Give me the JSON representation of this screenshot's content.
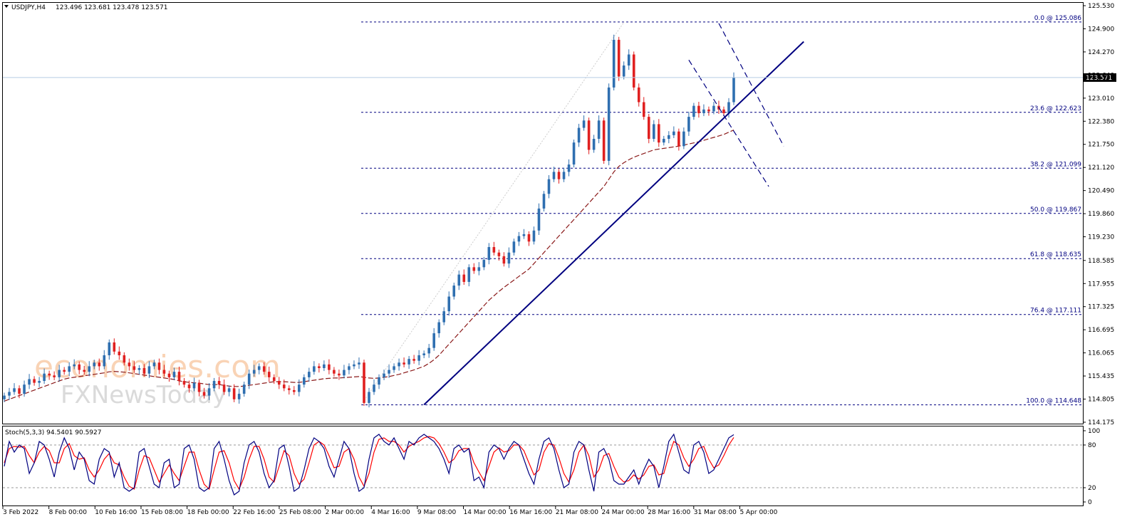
{
  "header": {
    "symbol": "USDJPY,H4",
    "ohlc": "123.496 123.681 123.478 123.571"
  },
  "watermark": {
    "brand": "economies.com",
    "sub": "FXNewsToday"
  },
  "current_price": "123.571",
  "stoch": {
    "label": "Stoch(5,3,3) 94.5401 90.5927",
    "levels": [
      "100",
      "80",
      "20",
      "0"
    ]
  },
  "colors": {
    "bull": "#2f6fb0",
    "bear": "#e02020",
    "fib": "#000080",
    "trend": "#000080",
    "ma": "#8b1a1a",
    "stoch_main": "#000080",
    "stoch_signal": "#ff0000"
  },
  "chart_data": {
    "type": "candlestick",
    "price_axis": {
      "min": 114.175,
      "max": 125.53,
      "ticks": [
        "125.530",
        "124.900",
        "124.270",
        "123.640",
        "123.010",
        "122.380",
        "121.750",
        "121.120",
        "120.490",
        "119.860",
        "119.230",
        "118.585",
        "117.955",
        "117.325",
        "116.695",
        "116.065",
        "115.435",
        "114.805",
        "114.175"
      ]
    },
    "time_axis": [
      "3 Feb 2022",
      "8 Feb 00:00",
      "10 Feb 16:00",
      "15 Feb 08:00",
      "18 Feb 00:00",
      "22 Feb 16:00",
      "25 Feb 08:00",
      "2 Mar 00:00",
      "4 Mar 16:00",
      "9 Mar 08:00",
      "14 Mar 00:00",
      "16 Mar 16:00",
      "21 Mar 08:00",
      "24 Mar 00:00",
      "28 Mar 16:00",
      "31 Mar 08:00",
      "5 Apr 00:00"
    ],
    "fibonacci": [
      {
        "label": "0.0 @ 125.086",
        "value": 125.086
      },
      {
        "label": "23.6 @ 122.623",
        "value": 122.623
      },
      {
        "label": "38.2 @ 121.099",
        "value": 121.099
      },
      {
        "label": "50.0 @ 119.867",
        "value": 119.867
      },
      {
        "label": "61.8 @ 118.635",
        "value": 118.635
      },
      {
        "label": "76.4 @ 117.111",
        "value": 117.111
      },
      {
        "label": "100.0 @ 114.648",
        "value": 114.648
      }
    ],
    "trendlines": [
      {
        "style": "solid",
        "from": [
          84,
          114.65
        ],
        "to": [
          160,
          124.55
        ]
      },
      {
        "style": "dashed",
        "from": [
          137,
          124.05
        ],
        "to": [
          153,
          120.6
        ]
      },
      {
        "style": "dashed",
        "from": [
          143,
          125.05
        ],
        "to": [
          156,
          121.7
        ]
      }
    ],
    "close": [
      114.9,
      115.0,
      115.1,
      114.95,
      115.2,
      115.35,
      115.25,
      115.3,
      115.5,
      115.45,
      115.4,
      115.6,
      115.55,
      115.7,
      115.75,
      115.6,
      115.55,
      115.7,
      115.8,
      115.7,
      116.0,
      116.35,
      116.1,
      116.0,
      115.8,
      115.7,
      115.6,
      115.65,
      115.5,
      115.7,
      115.8,
      115.6,
      115.5,
      115.4,
      115.55,
      115.3,
      115.2,
      115.1,
      115.25,
      115.0,
      114.9,
      115.1,
      115.3,
      115.2,
      115.0,
      115.1,
      114.8,
      114.95,
      115.2,
      115.5,
      115.6,
      115.7,
      115.55,
      115.4,
      115.3,
      115.2,
      115.1,
      115.05,
      115.0,
      115.2,
      115.4,
      115.55,
      115.7,
      115.65,
      115.75,
      115.6,
      115.5,
      115.45,
      115.6,
      115.7,
      115.75,
      115.8,
      114.7,
      115.0,
      115.2,
      115.4,
      115.5,
      115.6,
      115.7,
      115.8,
      115.75,
      115.9,
      115.85,
      116.0,
      116.05,
      116.2,
      116.6,
      116.9,
      117.2,
      117.6,
      117.9,
      118.2,
      118.0,
      118.4,
      118.3,
      118.4,
      118.6,
      118.95,
      118.8,
      118.7,
      118.5,
      118.8,
      119.1,
      119.25,
      119.3,
      119.1,
      119.4,
      120.0,
      120.4,
      120.8,
      121.0,
      120.8,
      121.0,
      121.2,
      121.8,
      122.2,
      122.4,
      121.6,
      121.9,
      122.4,
      121.3,
      123.3,
      124.6,
      123.6,
      123.9,
      124.2,
      123.3,
      122.9,
      122.5,
      121.9,
      122.3,
      121.8,
      121.9,
      122.0,
      122.1,
      121.7,
      122.1,
      122.5,
      122.8,
      122.6,
      122.7,
      122.65,
      122.8,
      122.7,
      122.6,
      122.9,
      123.571
    ],
    "ma": [
      114.75,
      114.8,
      114.85,
      114.9,
      114.95,
      115.0,
      115.05,
      115.1,
      115.15,
      115.2,
      115.25,
      115.3,
      115.35,
      115.38,
      115.4,
      115.42,
      115.44,
      115.46,
      115.48,
      115.5,
      115.52,
      115.55,
      115.56,
      115.55,
      115.54,
      115.52,
      115.5,
      115.48,
      115.46,
      115.44,
      115.42,
      115.4,
      115.38,
      115.36,
      115.34,
      115.3,
      115.28,
      115.26,
      115.25,
      115.24,
      115.22,
      115.2,
      115.2,
      115.2,
      115.18,
      115.16,
      115.15,
      115.15,
      115.16,
      115.18,
      115.2,
      115.22,
      115.24,
      115.26,
      115.28,
      115.28,
      115.28,
      115.27,
      115.26,
      115.26,
      115.28,
      115.3,
      115.32,
      115.34,
      115.36,
      115.37,
      115.38,
      115.38,
      115.39,
      115.4,
      115.41,
      115.42,
      115.4,
      115.38,
      115.37,
      115.38,
      115.4,
      115.42,
      115.45,
      115.48,
      115.52,
      115.56,
      115.6,
      115.65,
      115.7,
      115.78,
      115.88,
      116.0,
      116.15,
      116.3,
      116.45,
      116.6,
      116.75,
      116.9,
      117.05,
      117.2,
      117.35,
      117.5,
      117.62,
      117.74,
      117.85,
      117.95,
      118.05,
      118.15,
      118.25,
      118.35,
      118.5,
      118.65,
      118.8,
      118.95,
      119.1,
      119.25,
      119.4,
      119.55,
      119.7,
      119.85,
      120.0,
      120.15,
      120.3,
      120.45,
      120.6,
      120.8,
      121.0,
      121.15,
      121.25,
      121.33,
      121.4,
      121.45,
      121.5,
      121.55,
      121.6,
      121.62,
      121.64,
      121.66,
      121.68,
      121.7,
      121.73,
      121.76,
      121.79,
      121.82,
      121.86,
      121.9,
      121.94,
      121.98,
      122.02,
      122.08,
      122.14
    ],
    "stoch_k": [
      50,
      85,
      70,
      80,
      75,
      40,
      55,
      85,
      80,
      60,
      35,
      70,
      90,
      75,
      45,
      70,
      60,
      30,
      25,
      60,
      75,
      70,
      35,
      55,
      20,
      15,
      20,
      70,
      75,
      50,
      25,
      20,
      55,
      60,
      20,
      25,
      75,
      80,
      60,
      20,
      15,
      20,
      75,
      85,
      60,
      30,
      10,
      15,
      55,
      80,
      85,
      70,
      40,
      20,
      30,
      75,
      80,
      50,
      15,
      20,
      45,
      75,
      90,
      85,
      75,
      50,
      35,
      60,
      85,
      75,
      40,
      15,
      20,
      60,
      90,
      95,
      85,
      80,
      90,
      75,
      60,
      85,
      80,
      90,
      95,
      90,
      85,
      75,
      60,
      40,
      75,
      80,
      70,
      75,
      30,
      35,
      20,
      70,
      80,
      75,
      60,
      75,
      85,
      80,
      60,
      40,
      25,
      60,
      85,
      90,
      75,
      45,
      20,
      25,
      70,
      85,
      80,
      45,
      15,
      70,
      75,
      60,
      30,
      25,
      25,
      35,
      45,
      25,
      45,
      60,
      50,
      20,
      50,
      85,
      95,
      70,
      45,
      40,
      80,
      85,
      70,
      40,
      45,
      60,
      75,
      90,
      94.5401
    ],
    "stoch_d": [
      55,
      75,
      78,
      77,
      78,
      65,
      55,
      70,
      78,
      72,
      55,
      55,
      75,
      82,
      65,
      60,
      62,
      45,
      35,
      45,
      60,
      68,
      55,
      52,
      35,
      22,
      18,
      45,
      65,
      62,
      45,
      28,
      40,
      52,
      40,
      30,
      50,
      70,
      70,
      45,
      25,
      18,
      45,
      70,
      72,
      55,
      30,
      18,
      35,
      60,
      78,
      78,
      60,
      35,
      28,
      50,
      72,
      65,
      40,
      25,
      32,
      55,
      80,
      85,
      80,
      65,
      48,
      50,
      70,
      75,
      60,
      35,
      22,
      40,
      70,
      88,
      90,
      85,
      85,
      80,
      70,
      78,
      82,
      85,
      90,
      92,
      90,
      82,
      70,
      55,
      60,
      72,
      75,
      75,
      55,
      42,
      30,
      50,
      70,
      76,
      70,
      72,
      80,
      80,
      72,
      55,
      38,
      45,
      70,
      82,
      80,
      62,
      40,
      28,
      45,
      70,
      80,
      65,
      35,
      45,
      65,
      68,
      50,
      35,
      28,
      30,
      38,
      32,
      38,
      50,
      52,
      38,
      40,
      65,
      85,
      80,
      62,
      50,
      60,
      75,
      78,
      60,
      48,
      52,
      65,
      80,
      90.5927
    ]
  }
}
